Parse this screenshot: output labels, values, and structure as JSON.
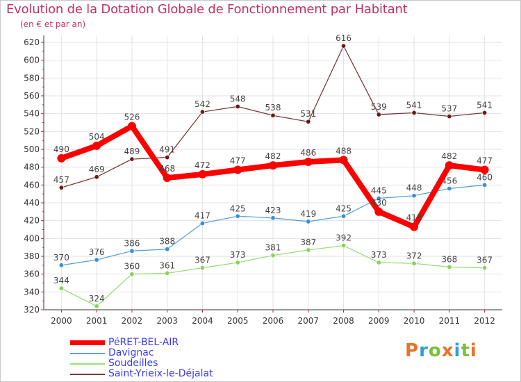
{
  "header": {
    "title": "Evolution de la Dotation Globale de Fonctionnement par Habitant",
    "subtitle": "(en € et par an)"
  },
  "logo": {
    "text": "Proxiti",
    "colors": [
      "#e8732a",
      "#2f9ed8",
      "#7cbf3a",
      "#e8732a",
      "#2f9ed8",
      "#7cbf3a",
      "#e8732a"
    ]
  },
  "chart_data": {
    "type": "line",
    "x": [
      "2000",
      "2001",
      "2002",
      "2003",
      "2004",
      "2005",
      "2006",
      "2007",
      "2008",
      "2009",
      "2010",
      "2011",
      "2012"
    ],
    "ylim": [
      320,
      620
    ],
    "yticks": [
      320,
      340,
      360,
      380,
      400,
      420,
      440,
      460,
      480,
      500,
      520,
      540,
      560,
      580,
      600,
      620
    ],
    "grid": true,
    "legend_position": "bottom-left",
    "series": [
      {
        "name": "PéRET-BEL-AIR",
        "color": "#ff0000",
        "marker": "#ff0000",
        "thick": true,
        "values": [
          490,
          504,
          526,
          468,
          472,
          477,
          482,
          486,
          488,
          430,
          413,
          482,
          477
        ]
      },
      {
        "name": "Davignac",
        "color": "#5aa0d8",
        "marker": "#3a8fd4",
        "thick": false,
        "values": [
          370,
          376,
          386,
          388,
          417,
          425,
          423,
          419,
          425,
          445,
          448,
          456,
          460
        ]
      },
      {
        "name": "Soudeilles",
        "color": "#99dd77",
        "marker": "#8ed05a",
        "thick": false,
        "values": [
          344,
          324,
          360,
          361,
          367,
          373,
          381,
          387,
          392,
          373,
          372,
          368,
          367
        ]
      },
      {
        "name": "Saint-Yrieix-le-Déjalat",
        "color": "#7a3a3a",
        "marker": "#6a1a1a",
        "thick": false,
        "values": [
          457,
          469,
          489,
          491,
          542,
          548,
          538,
          531,
          616,
          539,
          541,
          537,
          541
        ]
      }
    ]
  }
}
